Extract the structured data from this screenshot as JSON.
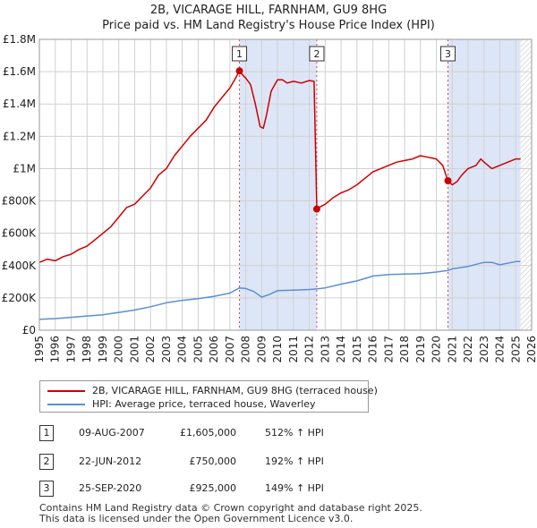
{
  "header": {
    "title": "2B, VICARAGE HILL, FARNHAM, GU9 8HG",
    "subtitle": "Price paid vs. HM Land Registry's House Price Index (HPI)"
  },
  "colors": {
    "property": "#cc0000",
    "hpi": "#5b8fd4",
    "shade": "#dde6f7",
    "grid": "#d0d0d0",
    "hatch": "#bbbbbb"
  },
  "chart_data": {
    "type": "line",
    "title": "2B, VICARAGE HILL, FARNHAM, GU9 8HG",
    "xlim": [
      1995,
      2026
    ],
    "ylim": [
      0,
      1800000
    ],
    "y_ticks": [
      0,
      200000,
      400000,
      600000,
      800000,
      1000000,
      1200000,
      1400000,
      1600000,
      1800000
    ],
    "y_tick_labels": [
      "£0",
      "£200K",
      "£400K",
      "£600K",
      "£800K",
      "£1M",
      "£1.2M",
      "£1.4M",
      "£1.6M",
      "£1.8M"
    ],
    "x_ticks": [
      1995,
      1996,
      1997,
      1998,
      1999,
      2000,
      2001,
      2002,
      2003,
      2004,
      2005,
      2006,
      2007,
      2008,
      2009,
      2010,
      2011,
      2012,
      2013,
      2014,
      2015,
      2016,
      2017,
      2018,
      2019,
      2020,
      2021,
      2022,
      2023,
      2024,
      2025,
      2026
    ],
    "x_tick_labels": [
      "1995",
      "1996",
      "1997",
      "1998",
      "1999",
      "2000",
      "2001",
      "2002",
      "2003",
      "2004",
      "2005",
      "2006",
      "2007",
      "2008",
      "2009",
      "2010",
      "2011",
      "2012",
      "2013",
      "2014",
      "2015",
      "2016",
      "2017",
      "2018",
      "2019",
      "2020",
      "2021",
      "2022",
      "2023",
      "2024",
      "2025",
      "2026"
    ],
    "grid": true,
    "legend": "below chart",
    "shaded_ranges": [
      [
        2007.6,
        2012.47
      ],
      [
        2020.73,
        2025.3
      ]
    ],
    "hatched_from": 2025.3,
    "series": [
      {
        "name": "2B, VICARAGE HILL, FARNHAM, GU9 8HG (terraced house)",
        "color": "#cc0000",
        "x": [
          1995.0,
          1995.5,
          1996.0,
          1996.5,
          1997.0,
          1997.5,
          1998.0,
          1998.5,
          1999.0,
          1999.5,
          2000.0,
          2000.5,
          2001.0,
          2001.5,
          2002.0,
          2002.5,
          2003.0,
          2003.5,
          2004.0,
          2004.5,
          2005.0,
          2005.5,
          2006.0,
          2006.5,
          2007.0,
          2007.3,
          2007.6,
          2007.8,
          2008.0,
          2008.3,
          2008.6,
          2008.9,
          2009.1,
          2009.3,
          2009.6,
          2010.0,
          2010.3,
          2010.6,
          2011.0,
          2011.5,
          2012.0,
          2012.3,
          2012.47,
          2012.6,
          2013.0,
          2013.5,
          2014.0,
          2014.5,
          2015.0,
          2015.5,
          2016.0,
          2016.5,
          2017.0,
          2017.5,
          2018.0,
          2018.5,
          2019.0,
          2019.5,
          2020.0,
          2020.4,
          2020.73,
          2021.0,
          2021.3,
          2021.6,
          2022.0,
          2022.5,
          2022.8,
          2023.0,
          2023.5,
          2024.0,
          2024.5,
          2025.0,
          2025.3
        ],
        "values": [
          420000,
          440000,
          430000,
          455000,
          470000,
          500000,
          520000,
          560000,
          600000,
          640000,
          700000,
          760000,
          780000,
          830000,
          880000,
          960000,
          1000000,
          1080000,
          1140000,
          1200000,
          1250000,
          1300000,
          1380000,
          1440000,
          1500000,
          1550000,
          1605000,
          1580000,
          1560000,
          1520000,
          1400000,
          1260000,
          1250000,
          1330000,
          1480000,
          1550000,
          1550000,
          1530000,
          1540000,
          1530000,
          1545000,
          1540000,
          750000,
          760000,
          780000,
          820000,
          850000,
          870000,
          900000,
          940000,
          980000,
          1000000,
          1020000,
          1040000,
          1050000,
          1060000,
          1080000,
          1070000,
          1060000,
          1020000,
          925000,
          900000,
          920000,
          960000,
          1000000,
          1020000,
          1060000,
          1040000,
          1000000,
          1020000,
          1040000,
          1060000,
          1060000
        ]
      },
      {
        "name": "HPI: Average price, terraced house, Waverley",
        "color": "#5b8fd4",
        "x": [
          1995.0,
          1996.0,
          1997.0,
          1998.0,
          1999.0,
          2000.0,
          2001.0,
          2002.0,
          2003.0,
          2004.0,
          2005.0,
          2006.0,
          2007.0,
          2007.6,
          2008.0,
          2008.5,
          2009.0,
          2009.5,
          2010.0,
          2011.0,
          2012.0,
          2012.5,
          2013.0,
          2014.0,
          2015.0,
          2016.0,
          2017.0,
          2018.0,
          2019.0,
          2020.0,
          2020.73,
          2021.0,
          2022.0,
          2023.0,
          2023.5,
          2024.0,
          2025.0,
          2025.3
        ],
        "values": [
          68000,
          72000,
          80000,
          88000,
          96000,
          110000,
          125000,
          145000,
          170000,
          185000,
          195000,
          210000,
          230000,
          262000,
          258000,
          240000,
          205000,
          222000,
          245000,
          248000,
          252000,
          256000,
          262000,
          285000,
          305000,
          335000,
          345000,
          348000,
          350000,
          360000,
          370000,
          380000,
          395000,
          420000,
          420000,
          405000,
          425000,
          425000
        ]
      }
    ],
    "sales": [
      {
        "label": "1",
        "x": 2007.6,
        "value": 1605000
      },
      {
        "label": "2",
        "x": 2012.47,
        "value": 750000
      },
      {
        "label": "3",
        "x": 2020.73,
        "value": 925000
      }
    ]
  },
  "legend": {
    "property_label": "2B, VICARAGE HILL, FARNHAM, GU9 8HG (terraced house)",
    "hpi_label": "HPI: Average price, terraced house, Waverley"
  },
  "sales_table": [
    {
      "num": "1",
      "date": "09-AUG-2007",
      "price": "£1,605,000",
      "hpi": "512% ↑ HPI"
    },
    {
      "num": "2",
      "date": "22-JUN-2012",
      "price": "£750,000",
      "hpi": "192% ↑ HPI"
    },
    {
      "num": "3",
      "date": "25-SEP-2020",
      "price": "£925,000",
      "hpi": "149% ↑ HPI"
    }
  ],
  "footer": {
    "line1": "Contains HM Land Registry data © Crown copyright and database right 2025.",
    "line2": "This data is licensed under the Open Government Licence v3.0."
  }
}
